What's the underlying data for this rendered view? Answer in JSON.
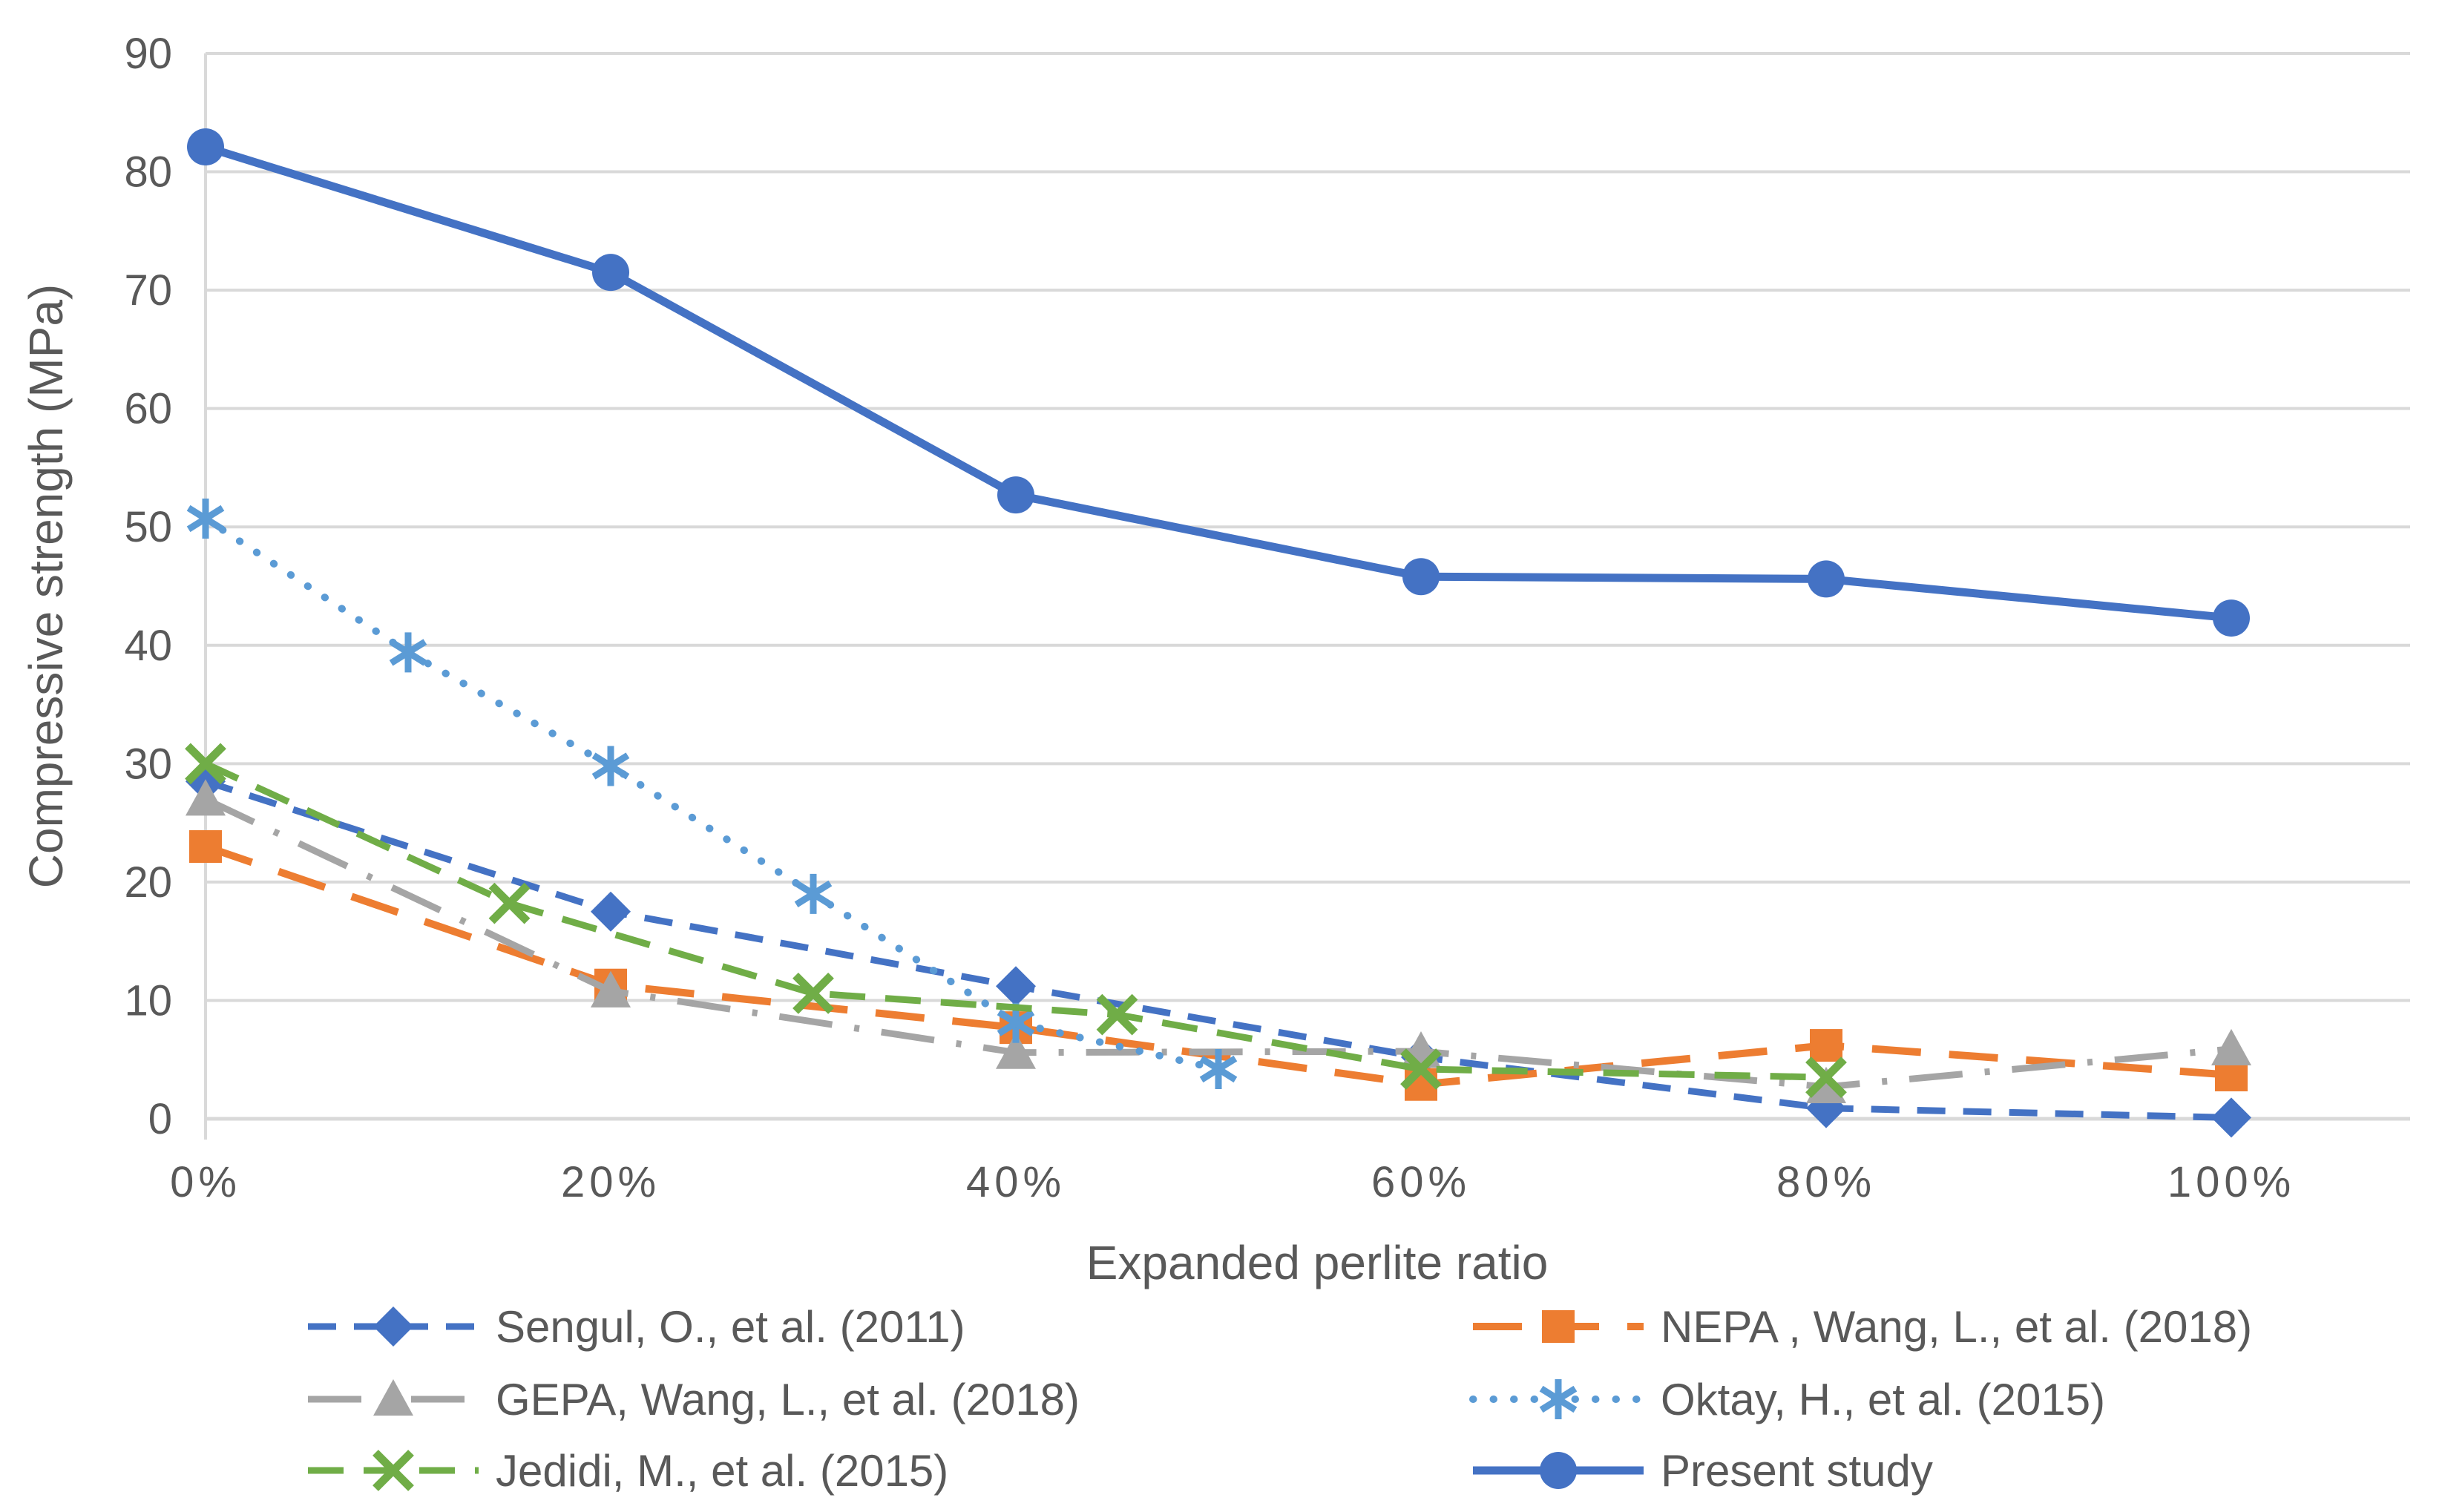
{
  "chart_data": {
    "type": "line",
    "title": "",
    "xlabel": "Expanded perlite ratio",
    "ylabel": "Compressive strength (MPa)",
    "ylim": [
      0,
      90
    ],
    "grid": true,
    "legend_position": "bottom, two columns",
    "y_ticks": [
      0,
      10,
      20,
      30,
      40,
      50,
      60,
      70,
      80,
      90
    ],
    "x_ticks": [
      {
        "value": 0,
        "label": "0%"
      },
      {
        "value": 20,
        "label": "20%"
      },
      {
        "value": 40,
        "label": "40%"
      },
      {
        "value": 60,
        "label": "60%"
      },
      {
        "value": 80,
        "label": "80%"
      },
      {
        "value": 100,
        "label": "100%"
      }
    ],
    "colors": {
      "grid": "#D9D9D9",
      "axis_line": "#D9D9D9",
      "text": "#595959",
      "accent_blue": "#4472C4",
      "accent_orange": "#ED7D31",
      "accent_gray": "#A5A5A5",
      "accent_lightblue": "#5B9BD5",
      "accent_green": "#70AD47"
    },
    "series": [
      {
        "id": "sengul",
        "label": "Sengul, O., et al. (2011)",
        "color": "#4472C4",
        "marker": "diamond",
        "line_style": "dashed-short",
        "line_width": 9,
        "legend_column": 0,
        "legend_row": 0,
        "points": [
          {
            "x": 0,
            "y": 28.5
          },
          {
            "x": 20,
            "y": 17.5
          },
          {
            "x": 40,
            "y": 11.2
          },
          {
            "x": 60,
            "y": 5.2
          },
          {
            "x": 80,
            "y": 0.9
          },
          {
            "x": 100,
            "y": 0.1
          }
        ]
      },
      {
        "id": "nepa",
        "label": "NEPA , Wang, L., et al. (2018)",
        "color": "#ED7D31",
        "marker": "square",
        "line_style": "long-dash",
        "line_width": 10,
        "legend_column": 1,
        "legend_row": 0,
        "points": [
          {
            "x": 0,
            "y": 23.0
          },
          {
            "x": 20,
            "y": 11.3
          },
          {
            "x": 40,
            "y": 7.7
          },
          {
            "x": 60,
            "y": 2.9
          },
          {
            "x": 80,
            "y": 6.2
          },
          {
            "x": 100,
            "y": 3.7
          }
        ]
      },
      {
        "id": "gepa",
        "label": "GEPA, Wang, L., et al. (2018)",
        "color": "#A5A5A5",
        "marker": "triangle",
        "line_style": "dash-dot",
        "line_width": 9,
        "legend_column": 0,
        "legend_row": 1,
        "points": [
          {
            "x": 0,
            "y": 27.0
          },
          {
            "x": 20,
            "y": 10.8
          },
          {
            "x": 40,
            "y": 5.6
          },
          {
            "x": 60,
            "y": 5.7
          },
          {
            "x": 80,
            "y": 2.7
          },
          {
            "x": 100,
            "y": 5.9
          }
        ]
      },
      {
        "id": "oktay",
        "label": "Oktay, H., et al. (2015)",
        "color": "#5B9BD5",
        "marker": "asterisk",
        "line_style": "dotted",
        "line_width": 10,
        "legend_column": 1,
        "legend_row": 1,
        "points": [
          {
            "x": 0,
            "y": 50.7
          },
          {
            "x": 10,
            "y": 39.4
          },
          {
            "x": 20,
            "y": 29.8
          },
          {
            "x": 30,
            "y": 19.0
          },
          {
            "x": 40,
            "y": 8.1
          },
          {
            "x": 50,
            "y": 4.2
          }
        ]
      },
      {
        "id": "jedidi",
        "label": "Jedidi, M., et al. (2015)",
        "color": "#70AD47",
        "marker": "x",
        "line_style": "dashed",
        "line_width": 9,
        "legend_column": 0,
        "legend_row": 2,
        "points": [
          {
            "x": 0,
            "y": 30.0
          },
          {
            "x": 15,
            "y": 18.2
          },
          {
            "x": 30,
            "y": 10.6
          },
          {
            "x": 45,
            "y": 8.8
          },
          {
            "x": 60,
            "y": 4.2
          },
          {
            "x": 80,
            "y": 3.5
          }
        ]
      },
      {
        "id": "present",
        "label": "Present study",
        "color": "#4472C4",
        "marker": "circle",
        "line_style": "solid",
        "line_width": 11,
        "legend_column": 1,
        "legend_row": 2,
        "points": [
          {
            "x": 0,
            "y": 82.1
          },
          {
            "x": 20,
            "y": 71.5
          },
          {
            "x": 40,
            "y": 52.7
          },
          {
            "x": 60,
            "y": 45.8
          },
          {
            "x": 80,
            "y": 45.6
          },
          {
            "x": 100,
            "y": 42.3
          }
        ]
      }
    ]
  }
}
